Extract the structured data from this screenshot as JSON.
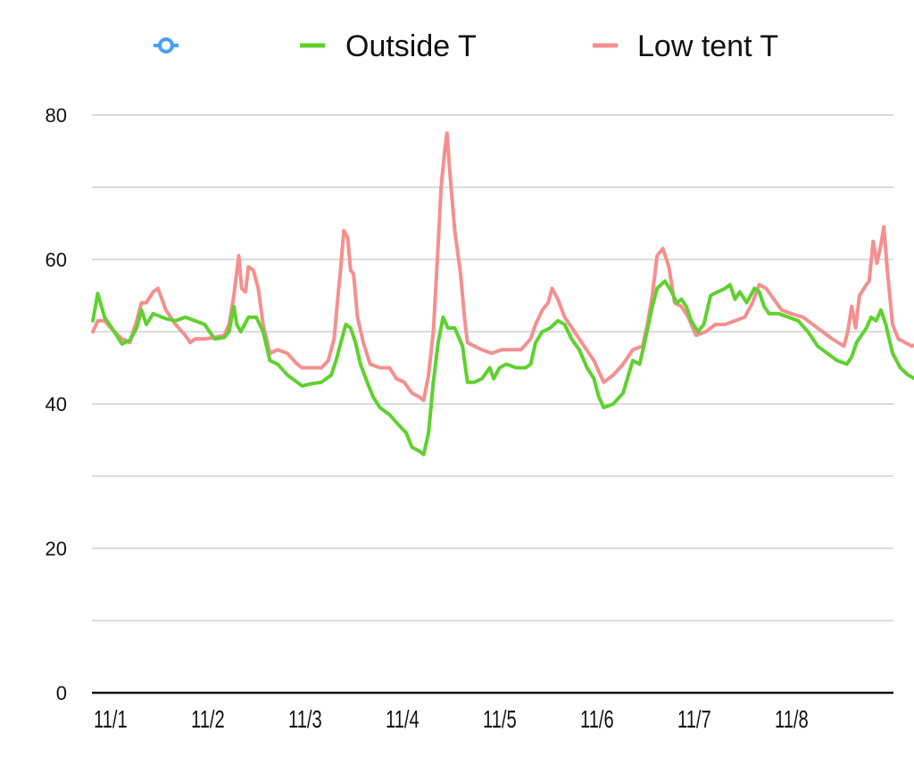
{
  "chart_data": {
    "type": "line",
    "title": "",
    "xlabel": "",
    "ylabel": "",
    "ylim": [
      0,
      80
    ],
    "y_ticks": [
      0,
      20,
      40,
      60,
      80
    ],
    "y_tick_labels": [
      "0",
      "20",
      "40",
      "60",
      "80"
    ],
    "grid": true,
    "legend_position": "top",
    "x_range": [
      0,
      8.2
    ],
    "x_ticks": [
      {
        "label": "11/1",
        "x": 0.0
      },
      {
        "label": "11/2",
        "x": 1.0
      },
      {
        "label": "11/3",
        "x": 2.0
      },
      {
        "label": "11/4",
        "x": 3.0
      },
      {
        "label": "11/5",
        "x": 4.0
      },
      {
        "label": "11/6",
        "x": 5.0
      },
      {
        "label": "11/7",
        "x": 6.0
      },
      {
        "label": "11/8",
        "x": 7.0
      }
    ],
    "series": [
      {
        "name": "",
        "color": "#4a9ff5",
        "marker": "hollow-circle",
        "points": []
      },
      {
        "name": "Outside T",
        "color": "#5fd12e",
        "points": [
          [
            0.0,
            51.5
          ],
          [
            0.05,
            55.3
          ],
          [
            0.12,
            52.0
          ],
          [
            0.22,
            50.0
          ],
          [
            0.3,
            48.3
          ],
          [
            0.38,
            48.8
          ],
          [
            0.45,
            50.5
          ],
          [
            0.5,
            53.0
          ],
          [
            0.55,
            51.0
          ],
          [
            0.62,
            52.5
          ],
          [
            0.75,
            51.8
          ],
          [
            0.85,
            51.5
          ],
          [
            0.95,
            52.0
          ],
          [
            1.05,
            51.5
          ],
          [
            1.15,
            51.0
          ],
          [
            1.25,
            49.0
          ],
          [
            1.35,
            49.2
          ],
          [
            1.4,
            50.0
          ],
          [
            1.45,
            53.5
          ],
          [
            1.48,
            51.0
          ],
          [
            1.52,
            50.0
          ],
          [
            1.6,
            52.0
          ],
          [
            1.68,
            52.0
          ],
          [
            1.75,
            50.0
          ],
          [
            1.82,
            46.0
          ],
          [
            1.9,
            45.5
          ],
          [
            2.0,
            44.0
          ],
          [
            2.1,
            43.0
          ],
          [
            2.15,
            42.5
          ],
          [
            2.25,
            42.8
          ],
          [
            2.35,
            43.0
          ],
          [
            2.45,
            44.0
          ],
          [
            2.5,
            46.0
          ],
          [
            2.55,
            48.5
          ],
          [
            2.6,
            51.0
          ],
          [
            2.65,
            50.5
          ],
          [
            2.7,
            48.5
          ],
          [
            2.75,
            45.5
          ],
          [
            2.82,
            43.0
          ],
          [
            2.88,
            41.0
          ],
          [
            2.95,
            39.5
          ],
          [
            3.05,
            38.5
          ],
          [
            3.15,
            37.0
          ],
          [
            3.22,
            36.0
          ],
          [
            3.28,
            34.0
          ],
          [
            3.35,
            33.5
          ],
          [
            3.4,
            33.0
          ],
          [
            3.45,
            36.0
          ],
          [
            3.5,
            43.0
          ],
          [
            3.55,
            48.5
          ],
          [
            3.6,
            52.0
          ],
          [
            3.65,
            50.5
          ],
          [
            3.72,
            50.5
          ],
          [
            3.8,
            48.0
          ],
          [
            3.85,
            43.0
          ],
          [
            3.92,
            43.0
          ],
          [
            4.0,
            43.5
          ],
          [
            4.08,
            45.0
          ],
          [
            4.12,
            43.5
          ],
          [
            4.18,
            45.0
          ],
          [
            4.25,
            45.5
          ],
          [
            4.35,
            45.0
          ],
          [
            4.45,
            45.0
          ],
          [
            4.5,
            45.5
          ],
          [
            4.55,
            48.5
          ],
          [
            4.62,
            50.0
          ],
          [
            4.7,
            50.5
          ],
          [
            4.78,
            51.5
          ],
          [
            4.85,
            51.0
          ],
          [
            4.92,
            49.0
          ],
          [
            5.0,
            47.5
          ],
          [
            5.08,
            45.0
          ],
          [
            5.15,
            43.5
          ],
          [
            5.2,
            41.0
          ],
          [
            5.25,
            39.5
          ],
          [
            5.35,
            40.0
          ],
          [
            5.45,
            41.5
          ],
          [
            5.55,
            46.0
          ],
          [
            5.62,
            45.5
          ],
          [
            5.68,
            49.0
          ],
          [
            5.75,
            53.5
          ],
          [
            5.8,
            56.0
          ],
          [
            5.88,
            57.0
          ],
          [
            5.95,
            55.5
          ],
          [
            6.0,
            54.0
          ],
          [
            6.05,
            54.5
          ],
          [
            6.1,
            53.5
          ],
          [
            6.15,
            51.5
          ],
          [
            6.22,
            50.0
          ],
          [
            6.28,
            51.0
          ],
          [
            6.35,
            55.0
          ],
          [
            6.42,
            55.5
          ],
          [
            6.5,
            56.0
          ],
          [
            6.55,
            56.5
          ],
          [
            6.6,
            54.5
          ],
          [
            6.65,
            55.5
          ],
          [
            6.72,
            54.0
          ],
          [
            6.8,
            56.0
          ],
          [
            6.85,
            55.5
          ],
          [
            6.9,
            53.5
          ],
          [
            6.95,
            52.5
          ],
          [
            7.05,
            52.5
          ],
          [
            7.15,
            52.0
          ],
          [
            7.25,
            51.5
          ],
          [
            7.35,
            50.0
          ],
          [
            7.45,
            48.0
          ],
          [
            7.55,
            47.0
          ],
          [
            7.65,
            46.0
          ],
          [
            7.75,
            45.5
          ],
          [
            7.8,
            46.5
          ],
          [
            7.85,
            48.5
          ],
          [
            7.9,
            49.5
          ],
          [
            7.95,
            50.5
          ],
          [
            8.0,
            52.0
          ],
          [
            8.05,
            51.5
          ],
          [
            8.1,
            53.0
          ],
          [
            8.15,
            51.0
          ],
          [
            8.22,
            47.0
          ],
          [
            8.3,
            45.0
          ],
          [
            8.38,
            44.0
          ],
          [
            8.45,
            43.5
          ],
          [
            8.5,
            44.0
          ],
          [
            8.55,
            44.8
          ]
        ]
      },
      {
        "name": "Low tent T",
        "color": "#f58f8f",
        "points": [
          [
            0.0,
            50.0
          ],
          [
            0.05,
            51.5
          ],
          [
            0.12,
            51.5
          ],
          [
            0.22,
            50.0
          ],
          [
            0.3,
            49.0
          ],
          [
            0.38,
            48.5
          ],
          [
            0.45,
            51.5
          ],
          [
            0.5,
            54.0
          ],
          [
            0.55,
            54.0
          ],
          [
            0.62,
            55.5
          ],
          [
            0.67,
            56.0
          ],
          [
            0.75,
            53.0
          ],
          [
            0.85,
            51.0
          ],
          [
            0.95,
            49.5
          ],
          [
            1.0,
            48.5
          ],
          [
            1.05,
            49.0
          ],
          [
            1.15,
            49.0
          ],
          [
            1.25,
            49.2
          ],
          [
            1.35,
            49.5
          ],
          [
            1.4,
            51.0
          ],
          [
            1.45,
            55.0
          ],
          [
            1.5,
            60.5
          ],
          [
            1.53,
            56.0
          ],
          [
            1.57,
            55.5
          ],
          [
            1.6,
            59.0
          ],
          [
            1.65,
            58.5
          ],
          [
            1.7,
            56.0
          ],
          [
            1.75,
            51.0
          ],
          [
            1.82,
            47.0
          ],
          [
            1.9,
            47.5
          ],
          [
            2.0,
            47.0
          ],
          [
            2.1,
            45.5
          ],
          [
            2.15,
            45.0
          ],
          [
            2.25,
            45.0
          ],
          [
            2.35,
            45.0
          ],
          [
            2.42,
            46.0
          ],
          [
            2.48,
            49.0
          ],
          [
            2.52,
            55.0
          ],
          [
            2.55,
            59.0
          ],
          [
            2.58,
            64.0
          ],
          [
            2.62,
            63.0
          ],
          [
            2.65,
            58.5
          ],
          [
            2.68,
            58.0
          ],
          [
            2.72,
            52.0
          ],
          [
            2.78,
            48.5
          ],
          [
            2.85,
            45.5
          ],
          [
            2.95,
            45.0
          ],
          [
            3.05,
            45.0
          ],
          [
            3.12,
            43.5
          ],
          [
            3.2,
            43.0
          ],
          [
            3.28,
            41.5
          ],
          [
            3.35,
            41.0
          ],
          [
            3.4,
            40.5
          ],
          [
            3.45,
            44.0
          ],
          [
            3.5,
            50.0
          ],
          [
            3.55,
            62.0
          ],
          [
            3.58,
            70.0
          ],
          [
            3.62,
            75.5
          ],
          [
            3.64,
            77.5
          ],
          [
            3.67,
            72.0
          ],
          [
            3.72,
            64.0
          ],
          [
            3.78,
            58.0
          ],
          [
            3.82,
            52.0
          ],
          [
            3.85,
            48.5
          ],
          [
            3.92,
            48.0
          ],
          [
            4.0,
            47.5
          ],
          [
            4.1,
            47.0
          ],
          [
            4.2,
            47.5
          ],
          [
            4.3,
            47.5
          ],
          [
            4.4,
            47.5
          ],
          [
            4.5,
            49.0
          ],
          [
            4.55,
            51.0
          ],
          [
            4.62,
            53.0
          ],
          [
            4.68,
            54.0
          ],
          [
            4.72,
            56.0
          ],
          [
            4.78,
            54.5
          ],
          [
            4.85,
            52.0
          ],
          [
            4.95,
            50.0
          ],
          [
            5.05,
            48.0
          ],
          [
            5.15,
            46.0
          ],
          [
            5.25,
            43.0
          ],
          [
            5.35,
            44.0
          ],
          [
            5.45,
            45.5
          ],
          [
            5.55,
            47.5
          ],
          [
            5.65,
            48.0
          ],
          [
            5.7,
            51.0
          ],
          [
            5.75,
            55.0
          ],
          [
            5.8,
            60.5
          ],
          [
            5.86,
            61.5
          ],
          [
            5.92,
            59.0
          ],
          [
            5.98,
            54.0
          ],
          [
            6.05,
            53.5
          ],
          [
            6.12,
            52.0
          ],
          [
            6.2,
            49.5
          ],
          [
            6.3,
            50.0
          ],
          [
            6.4,
            51.0
          ],
          [
            6.5,
            51.0
          ],
          [
            6.6,
            51.5
          ],
          [
            6.7,
            52.0
          ],
          [
            6.78,
            54.0
          ],
          [
            6.85,
            56.5
          ],
          [
            6.92,
            56.0
          ],
          [
            7.0,
            54.5
          ],
          [
            7.08,
            53.0
          ],
          [
            7.18,
            52.5
          ],
          [
            7.3,
            52.0
          ],
          [
            7.4,
            51.0
          ],
          [
            7.5,
            50.0
          ],
          [
            7.6,
            49.0
          ],
          [
            7.72,
            48.0
          ],
          [
            7.76,
            50.0
          ],
          [
            7.8,
            53.5
          ],
          [
            7.84,
            50.5
          ],
          [
            7.88,
            55.0
          ],
          [
            7.95,
            56.5
          ],
          [
            7.98,
            57.0
          ],
          [
            8.02,
            62.5
          ],
          [
            8.06,
            59.5
          ],
          [
            8.1,
            62.0
          ],
          [
            8.13,
            64.5
          ],
          [
            8.17,
            58.0
          ],
          [
            8.22,
            51.0
          ],
          [
            8.28,
            49.0
          ],
          [
            8.35,
            48.5
          ],
          [
            8.42,
            48.0
          ],
          [
            8.5,
            48.5
          ],
          [
            8.55,
            48.5
          ]
        ]
      }
    ]
  }
}
